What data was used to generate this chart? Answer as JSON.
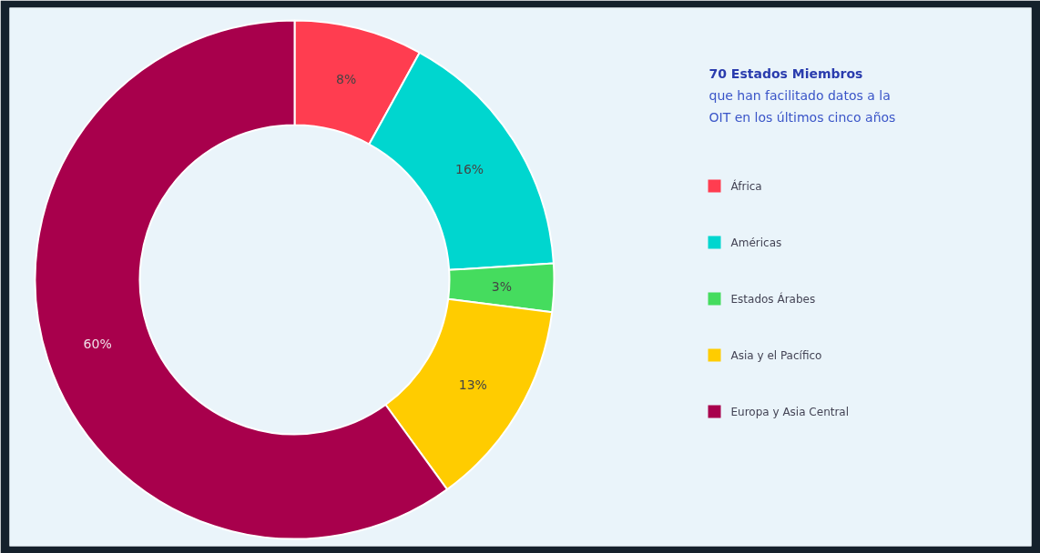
{
  "chart_data": {
    "type": "donut",
    "title": "70 Estados Miembros",
    "subtitle": "que han facilitado datos a la OIT en los últimos cinco años",
    "categories": [
      "África",
      "Américas",
      "Estados Árabes",
      "Asia y el Pacífico",
      "Europa y Asia Central"
    ],
    "values": [
      8,
      16,
      3,
      13,
      60
    ],
    "colors": [
      "#ff3d50",
      "#00d6cf",
      "#45dc5e",
      "#ffcc00",
      "#a8004c"
    ],
    "value_labels": [
      "8%",
      "16%",
      "3%",
      "13%",
      "60%"
    ],
    "legend": "right"
  }
}
